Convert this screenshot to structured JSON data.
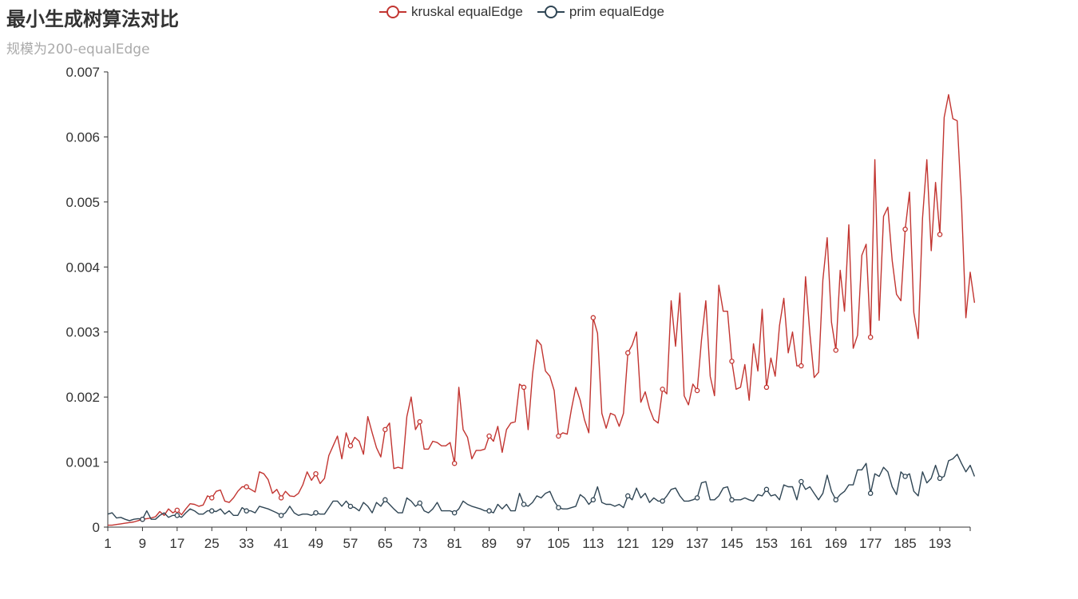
{
  "title": "最小生成树算法对比",
  "subtitle": "规模为200-equalEdge",
  "chart_data": {
    "type": "line",
    "xlabel": "",
    "ylabel": "",
    "x_start": 1,
    "x_end": 200,
    "x_tick_labels": [
      "1",
      "9",
      "17",
      "25",
      "33",
      "41",
      "49",
      "57",
      "65",
      "73",
      "81",
      "89",
      "97",
      "105",
      "113",
      "121",
      "129",
      "137",
      "145",
      "153",
      "161",
      "169",
      "177",
      "185",
      "193"
    ],
    "y_ticks": [
      0,
      0.001,
      0.002,
      0.003,
      0.004,
      0.005,
      0.006,
      0.007
    ],
    "y_tick_labels": [
      "0",
      "0.001",
      "0.002",
      "0.003",
      "0.004",
      "0.005",
      "0.006",
      "0.007"
    ],
    "ylim": [
      0,
      0.007
    ],
    "grid": false,
    "legend_position": "top-center",
    "series": [
      {
        "name": "kruskal equalEdge",
        "color": "#c23531",
        "values": [
          3e-05,
          3e-05,
          4e-05,
          5e-05,
          6e-05,
          7e-05,
          8e-05,
          0.0001,
          0.00012,
          0.00013,
          0.00014,
          0.00016,
          0.00024,
          0.00018,
          0.00028,
          0.00022,
          0.00026,
          0.00019,
          0.00028,
          0.00036,
          0.00035,
          0.00032,
          0.00034,
          0.00048,
          0.00045,
          0.00055,
          0.00057,
          0.0004,
          0.00038,
          0.00045,
          0.00055,
          0.00062,
          0.00062,
          0.00058,
          0.00054,
          0.00085,
          0.00082,
          0.00073,
          0.00052,
          0.00058,
          0.00045,
          0.00055,
          0.00048,
          0.00047,
          0.00052,
          0.00065,
          0.00085,
          0.00072,
          0.00082,
          0.00067,
          0.00075,
          0.0011,
          0.00125,
          0.0014,
          0.00105,
          0.00145,
          0.00125,
          0.00138,
          0.00132,
          0.00112,
          0.0017,
          0.00145,
          0.00122,
          0.00108,
          0.0015,
          0.0016,
          0.0009,
          0.00092,
          0.0009,
          0.0017,
          0.002,
          0.0015,
          0.00162,
          0.0012,
          0.0012,
          0.00132,
          0.0013,
          0.00125,
          0.00125,
          0.0013,
          0.00098,
          0.00215,
          0.0015,
          0.00138,
          0.00105,
          0.00118,
          0.00118,
          0.0012,
          0.0014,
          0.00132,
          0.00155,
          0.00115,
          0.0015,
          0.0016,
          0.00162,
          0.0022,
          0.00215,
          0.0015,
          0.00235,
          0.00288,
          0.0028,
          0.0024,
          0.00232,
          0.0021,
          0.0014,
          0.00145,
          0.00143,
          0.00182,
          0.00215,
          0.00195,
          0.00165,
          0.00145,
          0.00322,
          0.00298,
          0.00175,
          0.00152,
          0.00175,
          0.00172,
          0.00155,
          0.00175,
          0.00268,
          0.0028,
          0.003,
          0.00192,
          0.00208,
          0.00182,
          0.00165,
          0.0016,
          0.00212,
          0.00205,
          0.00348,
          0.00278,
          0.0036,
          0.00202,
          0.00188,
          0.0022,
          0.0021,
          0.00288,
          0.00348,
          0.00232,
          0.00202,
          0.00372,
          0.00332,
          0.00332,
          0.00255,
          0.00212,
          0.00215,
          0.0025,
          0.00195,
          0.00282,
          0.0024,
          0.00335,
          0.00215,
          0.0026,
          0.00232,
          0.0031,
          0.00352,
          0.00268,
          0.003,
          0.00248,
          0.00248,
          0.00385,
          0.00298,
          0.0023,
          0.00238,
          0.0038,
          0.00445,
          0.00315,
          0.00272,
          0.00395,
          0.00332,
          0.00465,
          0.00275,
          0.00295,
          0.00418,
          0.00435,
          0.00292,
          0.00565,
          0.00318,
          0.00478,
          0.00492,
          0.0041,
          0.00358,
          0.00348,
          0.00458,
          0.00515,
          0.0033,
          0.0029,
          0.00475,
          0.00565,
          0.00425,
          0.0053,
          0.0045,
          0.0063,
          0.00665,
          0.00628,
          0.00625,
          0.00498,
          0.00322,
          0.00392,
          0.00345
        ],
        "marked_points_x": [
          9,
          17,
          25,
          33,
          41,
          49,
          57,
          65,
          73,
          81,
          89,
          97,
          105,
          113,
          121,
          129,
          137,
          145,
          153,
          161,
          169,
          177,
          185,
          193
        ]
      },
      {
        "name": "prim equalEdge",
        "color": "#2f4554",
        "values": [
          0.0002,
          0.00022,
          0.00014,
          0.00015,
          0.00012,
          0.0001,
          0.00012,
          0.00013,
          0.00012,
          0.00025,
          0.00012,
          0.00012,
          0.00018,
          0.00022,
          0.00015,
          0.00018,
          0.00018,
          0.00015,
          0.00022,
          0.00028,
          0.00025,
          0.0002,
          0.0002,
          0.00025,
          0.00025,
          0.00024,
          0.00028,
          0.0002,
          0.00025,
          0.00018,
          0.00018,
          0.0003,
          0.00025,
          0.00025,
          0.00022,
          0.00032,
          0.0003,
          0.00028,
          0.00025,
          0.00022,
          0.00018,
          0.00022,
          0.00032,
          0.00022,
          0.00018,
          0.0002,
          0.0002,
          0.00018,
          0.00022,
          0.0002,
          0.0002,
          0.0003,
          0.0004,
          0.0004,
          0.00032,
          0.0004,
          0.00032,
          0.0003,
          0.00025,
          0.00038,
          0.00032,
          0.00022,
          0.00038,
          0.00032,
          0.00042,
          0.00035,
          0.00028,
          0.00022,
          0.00022,
          0.00045,
          0.0004,
          0.00032,
          0.00037,
          0.00025,
          0.00022,
          0.00028,
          0.00038,
          0.00025,
          0.00025,
          0.00025,
          0.00022,
          0.00028,
          0.0004,
          0.00035,
          0.00032,
          0.0003,
          0.00028,
          0.00025,
          0.00025,
          0.00022,
          0.00035,
          0.00028,
          0.00035,
          0.00025,
          0.00025,
          0.00052,
          0.00035,
          0.00032,
          0.00038,
          0.00048,
          0.00045,
          0.00052,
          0.00055,
          0.0004,
          0.0003,
          0.00028,
          0.00028,
          0.0003,
          0.00032,
          0.0005,
          0.00045,
          0.00035,
          0.00042,
          0.00062,
          0.00038,
          0.00035,
          0.00035,
          0.00032,
          0.00035,
          0.0003,
          0.00048,
          0.00042,
          0.0006,
          0.00045,
          0.00052,
          0.00038,
          0.00045,
          0.0004,
          0.0004,
          0.00048,
          0.00058,
          0.0006,
          0.00048,
          0.0004,
          0.0004,
          0.00042,
          0.00045,
          0.00068,
          0.0007,
          0.00042,
          0.00042,
          0.00048,
          0.0006,
          0.00062,
          0.00042,
          0.00042,
          0.00042,
          0.00045,
          0.00042,
          0.0004,
          0.0005,
          0.00048,
          0.00058,
          0.00048,
          0.0005,
          0.00042,
          0.00065,
          0.00062,
          0.00062,
          0.00042,
          0.0007,
          0.00058,
          0.00062,
          0.00052,
          0.00042,
          0.00052,
          0.0008,
          0.00055,
          0.00042,
          0.0005,
          0.00055,
          0.00065,
          0.00065,
          0.00088,
          0.00088,
          0.00098,
          0.00052,
          0.00082,
          0.00078,
          0.00092,
          0.00085,
          0.00062,
          0.0005,
          0.00085,
          0.00078,
          0.00082,
          0.00055,
          0.00048,
          0.00085,
          0.00068,
          0.00075,
          0.00095,
          0.00075,
          0.00078,
          0.00102,
          0.00105,
          0.00112,
          0.00098,
          0.00085,
          0.00095,
          0.00078
        ],
        "marked_points_x": [
          9,
          17,
          25,
          33,
          41,
          49,
          57,
          65,
          73,
          81,
          89,
          97,
          105,
          113,
          121,
          129,
          137,
          145,
          153,
          161,
          169,
          177,
          185,
          193
        ]
      }
    ]
  }
}
